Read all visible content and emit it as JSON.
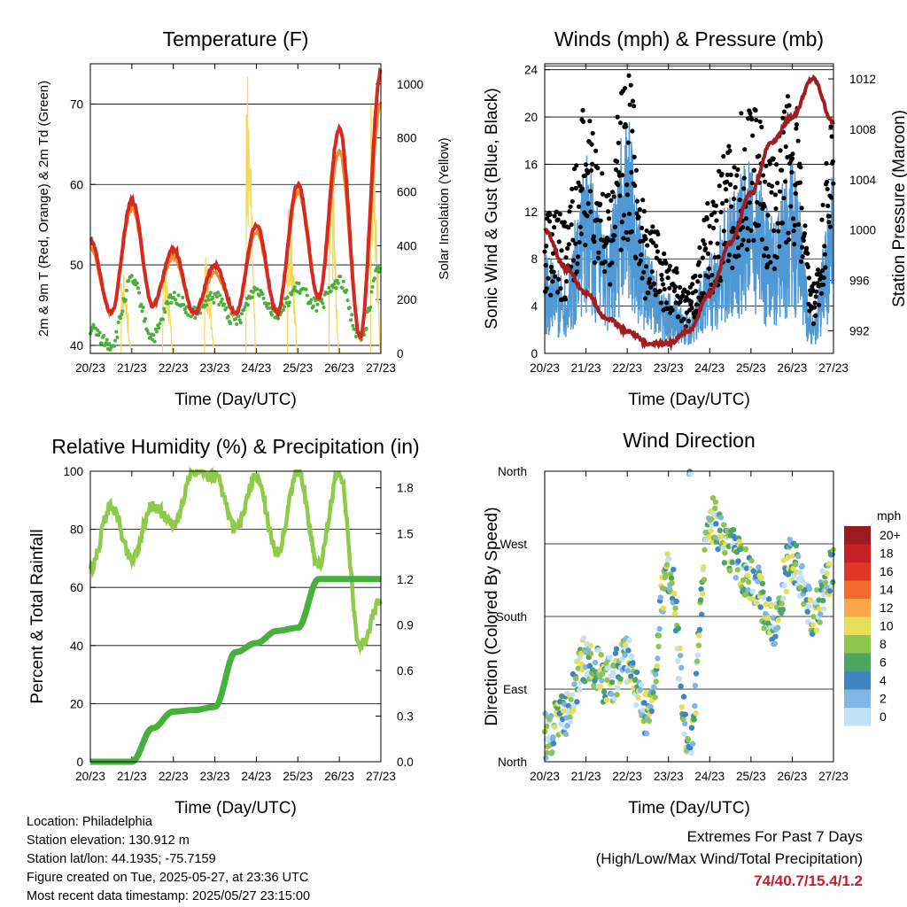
{
  "x_ticks": [
    "20/23",
    "21/23",
    "22/23",
    "23/23",
    "24/23",
    "25/23",
    "26/23",
    "27/23"
  ],
  "x_title": "Time (Day/UTC)",
  "colors": {
    "temp2m": "#d42a22",
    "temp9m": "#f08a25",
    "dewpoint": "#4cae3b",
    "solar": "#f5d95a",
    "gust": "#000000",
    "wind": "#4f98d4",
    "pressure": "#a01e22",
    "rh": "#8fca4a",
    "precip": "#46b03c",
    "grid": "#000000"
  },
  "info": {
    "location": "Location: Philadelphia",
    "elevation": "Station elevation: 130.912 m",
    "latlon": "Station lat/lon: 44.1935; -75.7159",
    "created": "Figure created on Tue, 2025-05-27, at 23:36 UTC",
    "recent": "Most recent data timestamp: 2025/05/27 23:15:00"
  },
  "extremes": {
    "title": "Extremes For Past 7 Days",
    "subtitle": "(High/Low/Max Wind/Total Precipitation)",
    "values": "74/40.7/15.4/1.2"
  },
  "chart_data": [
    {
      "type": "line",
      "title": "Temperature (F)",
      "xlabel": "Time (Day/UTC)",
      "ylabel": "2m & 9m T (Red, Orange) & 2m Td (Green)",
      "y2label": "Solar Insolation (Yellow)",
      "x": [
        0,
        0.5,
        1,
        1.5,
        2,
        2.5,
        3,
        3.5,
        4,
        4.5,
        5,
        5.5,
        6,
        6.5,
        7
      ],
      "ylim": [
        39,
        75
      ],
      "y2lim": [
        0,
        1075
      ],
      "y_ticks": [
        40,
        50,
        60,
        70
      ],
      "y2_ticks": [
        0,
        200,
        400,
        600,
        800,
        1000
      ],
      "series": [
        {
          "name": "2m T",
          "axis": "left",
          "values": [
            53,
            44,
            58,
            45,
            52,
            44,
            50,
            44,
            55,
            44,
            60,
            46,
            67,
            41,
            74
          ]
        },
        {
          "name": "9m T",
          "axis": "left",
          "values": [
            52,
            44,
            57,
            45,
            51,
            44,
            49,
            44,
            54,
            44,
            59,
            46,
            64,
            41,
            70
          ]
        },
        {
          "name": "2m Td",
          "axis": "left",
          "values": [
            42,
            40,
            48,
            41,
            46,
            44,
            46,
            43,
            47,
            44,
            47,
            45,
            48,
            41,
            50
          ]
        },
        {
          "name": "Solar Insolation",
          "axis": "right",
          "values": [
            0,
            0,
            320,
            0,
            380,
            0,
            360,
            0,
            1050,
            0,
            620,
            0,
            780,
            0,
            950
          ]
        }
      ]
    },
    {
      "type": "scatter",
      "title": "Winds (mph) & Pressure (mb)",
      "xlabel": "Time (Day/UTC)",
      "ylabel": "Sonic Wind & Gust (Blue, Black)",
      "y2label": "Station Pressure (Maroon)",
      "x": [
        0,
        0.5,
        1,
        1.5,
        2,
        2.5,
        3,
        3.5,
        4,
        4.5,
        5,
        5.5,
        6,
        6.5,
        7
      ],
      "ylim": [
        0,
        24.5
      ],
      "y2lim": [
        990.2,
        1013.2
      ],
      "y_ticks": [
        0,
        4,
        8,
        12,
        16,
        20,
        24
      ],
      "y2_ticks": [
        992,
        996,
        1000,
        1004,
        1008,
        1012
      ],
      "series": [
        {
          "name": "Gust",
          "axis": "left",
          "values": [
            9,
            8,
            15,
            10,
            17,
            8,
            6,
            4,
            9,
            13,
            15,
            12,
            16,
            4,
            14
          ]
        },
        {
          "name": "Wind",
          "axis": "left",
          "values": [
            5,
            4,
            10,
            6,
            12,
            5,
            3,
            2,
            5,
            8,
            10,
            7,
            10,
            2,
            9
          ]
        },
        {
          "name": "Pressure",
          "axis": "right",
          "values": [
            1000,
            997,
            995,
            993,
            992,
            991,
            991,
            992,
            995,
            999,
            1003,
            1007,
            1009,
            1012,
            1008.5
          ]
        }
      ]
    },
    {
      "type": "line",
      "title": "Relative Humidity (%) & Precipitation (in)",
      "xlabel": "Time (Day/UTC)",
      "ylabel": "Percent & Total Rainfall",
      "x": [
        0,
        0.5,
        1,
        1.5,
        2,
        2.5,
        3,
        3.5,
        4,
        4.5,
        5,
        5.5,
        6,
        6.5,
        7
      ],
      "ylim": [
        0,
        100
      ],
      "y2lim": [
        0,
        1.909
      ],
      "y_ticks": [
        0,
        20,
        40,
        60,
        80,
        100
      ],
      "y2_ticks": [
        0.0,
        0.3,
        0.6,
        0.9,
        1.2,
        1.5,
        1.8
      ],
      "series": [
        {
          "name": "Relative Humidity",
          "axis": "left",
          "values": [
            66,
            88,
            70,
            88,
            82,
            100,
            98,
            80,
            98,
            72,
            100,
            68,
            100,
            40,
            55
          ]
        },
        {
          "name": "Total Precipitation",
          "axis": "right",
          "values": [
            0,
            0,
            0,
            0.22,
            0.33,
            0.34,
            0.36,
            0.72,
            0.78,
            0.86,
            0.88,
            1.2,
            1.2,
            1.2,
            1.2
          ]
        }
      ]
    },
    {
      "type": "scatter",
      "title": "Wind Direction",
      "xlabel": "Time (Day/UTC)",
      "ylabel": "Direction (Colored By Speed)",
      "x": [
        0,
        0.5,
        1,
        1.5,
        2,
        2.5,
        3,
        3.5,
        4,
        4.5,
        5,
        5.5,
        6,
        6.5,
        7
      ],
      "ylim": [
        0,
        360
      ],
      "y_ticks": [
        "North",
        "East",
        "South",
        "West",
        "North"
      ],
      "legend_title": "mph",
      "legend_labels": [
        "20+",
        "18",
        "16",
        "14",
        "12",
        "10",
        "8",
        "6",
        "4",
        "2",
        "0"
      ],
      "legend_colors": [
        "#9a1b20",
        "#c42026",
        "#e03628",
        "#f26a2d",
        "#f9a64a",
        "#e6df57",
        "#8ec54f",
        "#4ca561",
        "#3e85c2",
        "#7fb6e3",
        "#bfe2f7"
      ],
      "series": [
        {
          "name": "Direction",
          "values": [
            30,
            60,
            130,
            100,
            125,
            60,
            240,
            20,
            300,
            260,
            230,
            170,
            250,
            180,
            240
          ]
        }
      ]
    }
  ]
}
